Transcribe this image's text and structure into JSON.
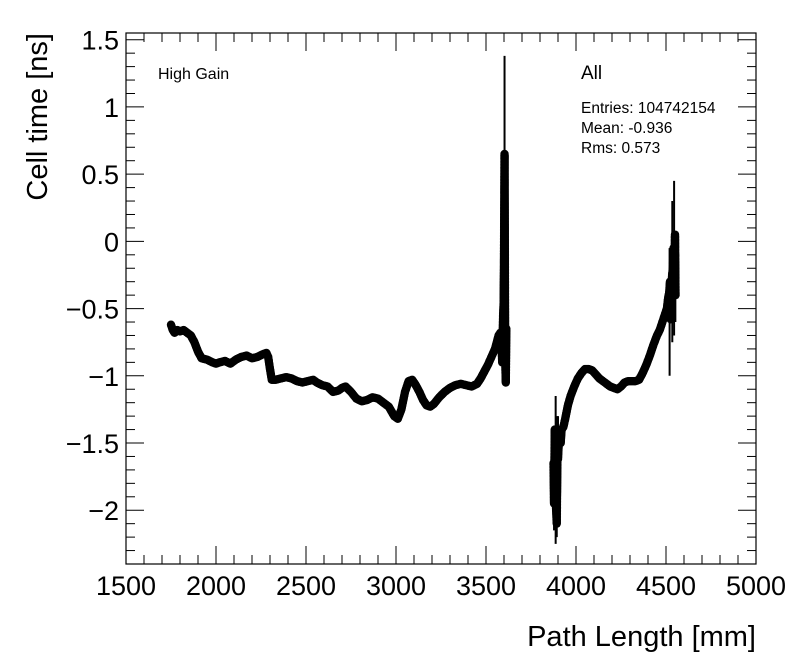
{
  "chart_data": {
    "type": "scatter",
    "title": "",
    "xlabel": "Path Length [mm]",
    "ylabel": "Cell time [ns]",
    "xlim": [
      1500,
      5000
    ],
    "ylim": [
      -2.4,
      1.55
    ],
    "x_ticks": [
      1500,
      2000,
      2500,
      3000,
      3500,
      4000,
      4500,
      5000
    ],
    "y_ticks": [
      -2,
      -1.5,
      -1,
      -0.5,
      0,
      0.5,
      1,
      1.5
    ],
    "x_tick_labels": [
      "1500",
      "2000",
      "2500",
      "3000",
      "3500",
      "4000",
      "4500",
      "5000"
    ],
    "y_tick_labels": [
      "−2",
      "−1.5",
      "−1",
      "−0.5",
      "0",
      "0.5",
      "1",
      "1.5"
    ],
    "grid": false,
    "gain_label": "High Gain",
    "stats": {
      "name": "All",
      "entries": "Entries: 104742154",
      "mean": "Mean: -0.936",
      "rms": "Rms: 0.573"
    },
    "marker_color": "#000000",
    "series": [
      {
        "segment": "lower-path",
        "points": [
          [
            1750,
            -0.62
          ],
          [
            1760,
            -0.66
          ],
          [
            1770,
            -0.68
          ],
          [
            1785,
            -0.66
          ],
          [
            1800,
            -0.67
          ],
          [
            1820,
            -0.66
          ],
          [
            1840,
            -0.68
          ],
          [
            1860,
            -0.7
          ],
          [
            1880,
            -0.75
          ],
          [
            1900,
            -0.82
          ],
          [
            1920,
            -0.87
          ],
          [
            1950,
            -0.88
          ],
          [
            1980,
            -0.9
          ],
          [
            2000,
            -0.91
          ],
          [
            2020,
            -0.9
          ],
          [
            2050,
            -0.89
          ],
          [
            2080,
            -0.91
          ],
          [
            2110,
            -0.88
          ],
          [
            2140,
            -0.86
          ],
          [
            2170,
            -0.85
          ],
          [
            2200,
            -0.87
          ],
          [
            2230,
            -0.86
          ],
          [
            2260,
            -0.84
          ],
          [
            2280,
            -0.83
          ],
          [
            2290,
            -0.86
          ],
          [
            2300,
            -0.95
          ],
          [
            2310,
            -1.03
          ],
          [
            2330,
            -1.03
          ],
          [
            2360,
            -1.02
          ],
          [
            2390,
            -1.01
          ],
          [
            2420,
            -1.02
          ],
          [
            2450,
            -1.04
          ],
          [
            2480,
            -1.05
          ],
          [
            2510,
            -1.04
          ],
          [
            2540,
            -1.03
          ],
          [
            2560,
            -1.05
          ],
          [
            2590,
            -1.07
          ],
          [
            2620,
            -1.08
          ],
          [
            2650,
            -1.12
          ],
          [
            2680,
            -1.11
          ],
          [
            2700,
            -1.09
          ],
          [
            2720,
            -1.08
          ],
          [
            2750,
            -1.12
          ],
          [
            2780,
            -1.17
          ],
          [
            2810,
            -1.19
          ],
          [
            2840,
            -1.18
          ],
          [
            2870,
            -1.16
          ],
          [
            2900,
            -1.17
          ],
          [
            2930,
            -1.2
          ],
          [
            2960,
            -1.23
          ],
          [
            2990,
            -1.3
          ],
          [
            3010,
            -1.32
          ],
          [
            3030,
            -1.25
          ],
          [
            3050,
            -1.12
          ],
          [
            3070,
            -1.04
          ],
          [
            3090,
            -1.03
          ],
          [
            3110,
            -1.07
          ],
          [
            3130,
            -1.12
          ],
          [
            3150,
            -1.18
          ],
          [
            3170,
            -1.22
          ],
          [
            3190,
            -1.23
          ],
          [
            3210,
            -1.21
          ],
          [
            3240,
            -1.16
          ],
          [
            3270,
            -1.12
          ],
          [
            3300,
            -1.09
          ],
          [
            3330,
            -1.07
          ],
          [
            3360,
            -1.06
          ],
          [
            3390,
            -1.07
          ],
          [
            3420,
            -1.08
          ],
          [
            3450,
            -1.06
          ],
          [
            3470,
            -1.02
          ],
          [
            3490,
            -0.97
          ],
          [
            3510,
            -0.92
          ],
          [
            3530,
            -0.86
          ],
          [
            3550,
            -0.8
          ],
          [
            3560,
            -0.75
          ],
          [
            3570,
            -0.7
          ],
          [
            3580,
            -0.68
          ],
          [
            3585,
            -0.73
          ],
          [
            3590,
            -0.9
          ],
          [
            3595,
            -0.55
          ],
          [
            3598,
            -0.45
          ],
          [
            3600,
            -0.12
          ],
          [
            3603,
            0.65
          ],
          [
            3606,
            -0.62
          ],
          [
            3608,
            -0.95
          ],
          [
            3610,
            -1.05
          ],
          [
            3613,
            -0.65
          ]
        ]
      },
      {
        "segment": "upper-path",
        "points": [
          [
            3875,
            -1.65
          ],
          [
            3878,
            -1.95
          ],
          [
            3882,
            -1.4
          ],
          [
            3886,
            -1.55
          ],
          [
            3889,
            -1.98
          ],
          [
            3893,
            -2.1
          ],
          [
            3897,
            -1.58
          ],
          [
            3900,
            -1.62
          ],
          [
            3905,
            -1.48
          ],
          [
            3910,
            -1.45
          ],
          [
            3915,
            -1.5
          ],
          [
            3920,
            -1.4
          ],
          [
            3930,
            -1.38
          ],
          [
            3940,
            -1.32
          ],
          [
            3955,
            -1.22
          ],
          [
            3970,
            -1.15
          ],
          [
            3990,
            -1.08
          ],
          [
            4010,
            -1.02
          ],
          [
            4030,
            -0.98
          ],
          [
            4050,
            -0.95
          ],
          [
            4070,
            -0.95
          ],
          [
            4090,
            -0.96
          ],
          [
            4110,
            -0.99
          ],
          [
            4130,
            -1.02
          ],
          [
            4150,
            -1.04
          ],
          [
            4170,
            -1.06
          ],
          [
            4190,
            -1.08
          ],
          [
            4210,
            -1.09
          ],
          [
            4230,
            -1.1
          ],
          [
            4250,
            -1.08
          ],
          [
            4270,
            -1.05
          ],
          [
            4290,
            -1.04
          ],
          [
            4310,
            -1.04
          ],
          [
            4330,
            -1.04
          ],
          [
            4350,
            -1.03
          ],
          [
            4370,
            -0.98
          ],
          [
            4390,
            -0.92
          ],
          [
            4410,
            -0.85
          ],
          [
            4430,
            -0.77
          ],
          [
            4450,
            -0.7
          ],
          [
            4465,
            -0.66
          ],
          [
            4475,
            -0.62
          ],
          [
            4485,
            -0.58
          ],
          [
            4495,
            -0.54
          ],
          [
            4505,
            -0.5
          ],
          [
            4512,
            -0.42
          ],
          [
            4518,
            -0.38
          ],
          [
            4522,
            -0.3
          ],
          [
            4526,
            -0.58
          ],
          [
            4530,
            -0.35
          ],
          [
            4534,
            -0.25
          ],
          [
            4538,
            -0.2
          ],
          [
            4542,
            -0.05
          ],
          [
            4546,
            -0.38
          ],
          [
            4550,
            0.05
          ],
          [
            4553,
            -0.4
          ]
        ]
      }
    ],
    "error_bars": [
      {
        "x": 3598,
        "lo": -0.95,
        "hi": -0.1
      },
      {
        "x": 3603,
        "lo": -0.1,
        "hi": 1.38
      },
      {
        "x": 3607,
        "lo": -1.05,
        "hi": -0.15
      },
      {
        "x": 3612,
        "lo": -0.9,
        "hi": -0.35
      },
      {
        "x": 3878,
        "lo": -2.15,
        "hi": -1.45
      },
      {
        "x": 3887,
        "lo": -2.25,
        "hi": -1.15
      },
      {
        "x": 3893,
        "lo": -2.2,
        "hi": -1.3
      },
      {
        "x": 3900,
        "lo": -1.8,
        "hi": -1.3
      },
      {
        "x": 4520,
        "lo": -1.0,
        "hi": -0.05
      },
      {
        "x": 4535,
        "lo": -0.75,
        "hi": 0.3
      },
      {
        "x": 4545,
        "lo": -0.7,
        "hi": 0.45
      },
      {
        "x": 4552,
        "lo": -0.6,
        "hi": 0.05
      }
    ]
  }
}
